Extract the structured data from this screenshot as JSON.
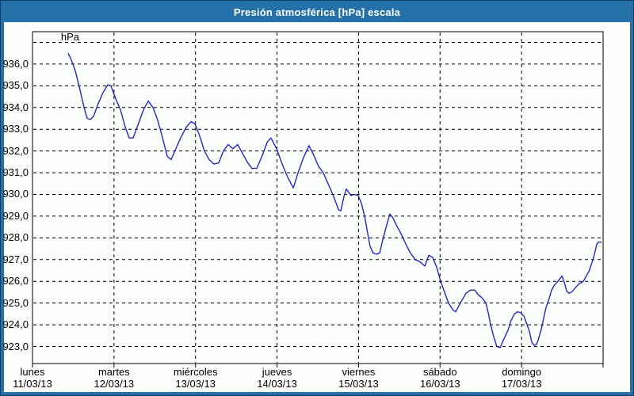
{
  "window": {
    "title": "Presión atmosférica [hPa] escala"
  },
  "colors": {
    "titlebar_bg": "#2470a8",
    "window_border": "#0d3a62",
    "content_bg": "#fcfffc",
    "line_color": "#2424c8",
    "grid_color": "#000000",
    "text_color": "#000000"
  },
  "chart_data": {
    "type": "line",
    "title": "Presión atmosférica [hPa] escala",
    "ylabel": "hPa",
    "unit_label": "hPa",
    "grid": "dashed",
    "legend": "none",
    "ylim": [
      922.3,
      937.5
    ],
    "y_gridlines": [
      923,
      924,
      925,
      926,
      927,
      928,
      929,
      930,
      931,
      932,
      933,
      934,
      935,
      936,
      937
    ],
    "y_tick_labels": [
      "936,0",
      "935,0",
      "934,0",
      "933,0",
      "932,0",
      "931,0",
      "930,0",
      "929,0",
      "928,0",
      "927,0",
      "926,0",
      "925,0",
      "924,0",
      "923,0"
    ],
    "x_ticks": [
      {
        "day": "lunes",
        "date": "11/03/13"
      },
      {
        "day": "martes",
        "date": "12/03/13"
      },
      {
        "day": "miércoles",
        "date": "13/03/13"
      },
      {
        "day": "jueves",
        "date": "14/03/13"
      },
      {
        "day": "viernes",
        "date": "15/03/13"
      },
      {
        "day": "sábado",
        "date": "16/03/13"
      },
      {
        "day": "domingo",
        "date": "17/03/13"
      }
    ],
    "x_axis_note": "x = hours since Monday 11/03/13 00:00, full span 0-168 h (7 days)",
    "series": [
      {
        "name": "Presión atmosférica",
        "points": [
          [
            10.5,
            936.5
          ],
          [
            11.4,
            936.2
          ],
          [
            12.6,
            935.7
          ],
          [
            14,
            934.8
          ],
          [
            15.2,
            934
          ],
          [
            16.1,
            933.5
          ],
          [
            17,
            933.45
          ],
          [
            18,
            933.6
          ],
          [
            19.4,
            934.2
          ],
          [
            20.8,
            934.7
          ],
          [
            22.2,
            935.05
          ],
          [
            23.1,
            935
          ],
          [
            24.5,
            934.4
          ],
          [
            25.9,
            933.9
          ],
          [
            27.3,
            933.1
          ],
          [
            28.5,
            932.6
          ],
          [
            29.6,
            932.6
          ],
          [
            31.3,
            933.3
          ],
          [
            32.7,
            933.9
          ],
          [
            34.1,
            934.3
          ],
          [
            35.5,
            934
          ],
          [
            36.9,
            933.4
          ],
          [
            38.3,
            932.6
          ],
          [
            39.7,
            931.75
          ],
          [
            40.8,
            931.6
          ],
          [
            42.2,
            932.1
          ],
          [
            43.6,
            932.6
          ],
          [
            45.3,
            933.1
          ],
          [
            46.7,
            933.35
          ],
          [
            47.8,
            933.25
          ],
          [
            49.2,
            932.7
          ],
          [
            50.6,
            932
          ],
          [
            52,
            931.6
          ],
          [
            53.4,
            931.4
          ],
          [
            54.8,
            931.45
          ],
          [
            56.2,
            932
          ],
          [
            57.6,
            932.3
          ],
          [
            59,
            932.1
          ],
          [
            60.4,
            932.3
          ],
          [
            61.8,
            931.9
          ],
          [
            63.2,
            931.5
          ],
          [
            64.6,
            931.2
          ],
          [
            66,
            931.2
          ],
          [
            67.7,
            931.8
          ],
          [
            69.1,
            932.4
          ],
          [
            70.2,
            932.6
          ],
          [
            71.9,
            932.1
          ],
          [
            73.5,
            931.4
          ],
          [
            75.1,
            930.8
          ],
          [
            76.8,
            930.3
          ],
          [
            78.2,
            931
          ],
          [
            79.8,
            931.7
          ],
          [
            81.4,
            932.25
          ],
          [
            82.8,
            931.8
          ],
          [
            84.2,
            931.3
          ],
          [
            85.6,
            931
          ],
          [
            87,
            930.5
          ],
          [
            88.7,
            929.9
          ],
          [
            90.1,
            929.3
          ],
          [
            90.8,
            929.25
          ],
          [
            91.7,
            929.9
          ],
          [
            92.4,
            930.25
          ],
          [
            93.1,
            930.1
          ],
          [
            93.8,
            929.95
          ],
          [
            94.7,
            930
          ],
          [
            95.9,
            929.95
          ],
          [
            96.8,
            929.6
          ],
          [
            97.8,
            929
          ],
          [
            98.7,
            928.2
          ],
          [
            99.4,
            927.6
          ],
          [
            100.3,
            927.3
          ],
          [
            101.3,
            927.25
          ],
          [
            102.2,
            927.3
          ],
          [
            103.1,
            927.9
          ],
          [
            104.3,
            928.6
          ],
          [
            105.2,
            929.1
          ],
          [
            106.2,
            928.9
          ],
          [
            107.1,
            928.6
          ],
          [
            108.5,
            928.2
          ],
          [
            110.1,
            927.65
          ],
          [
            111.3,
            927.3
          ],
          [
            112.7,
            927
          ],
          [
            114.1,
            926.9
          ],
          [
            115.5,
            926.7
          ],
          [
            116.7,
            927.2
          ],
          [
            117.8,
            927.1
          ],
          [
            119,
            926.65
          ],
          [
            120.2,
            926
          ],
          [
            121.3,
            925.5
          ],
          [
            122.5,
            925
          ],
          [
            123.7,
            924.7
          ],
          [
            124.6,
            924.6
          ],
          [
            126,
            925
          ],
          [
            127.6,
            925.45
          ],
          [
            129,
            925.6
          ],
          [
            130.2,
            925.6
          ],
          [
            131.4,
            925.35
          ],
          [
            132.3,
            925.25
          ],
          [
            133.5,
            925
          ],
          [
            134.2,
            924.55
          ],
          [
            134.9,
            924
          ],
          [
            135.8,
            923.45
          ],
          [
            136.7,
            923
          ],
          [
            137.7,
            922.95
          ],
          [
            138.8,
            923.35
          ],
          [
            140,
            923.75
          ],
          [
            140.9,
            924.2
          ],
          [
            141.9,
            924.5
          ],
          [
            142.8,
            924.6
          ],
          [
            143.7,
            924.55
          ],
          [
            144.7,
            924.4
          ],
          [
            145.4,
            924.1
          ],
          [
            146.3,
            923.7
          ],
          [
            147,
            923.2
          ],
          [
            147.7,
            923.05
          ],
          [
            148.4,
            923.1
          ],
          [
            148.9,
            923.3
          ],
          [
            149.8,
            923.8
          ],
          [
            150.5,
            924.3
          ],
          [
            151.2,
            924.8
          ],
          [
            152.1,
            925.2
          ],
          [
            152.8,
            925.6
          ],
          [
            153.8,
            925.85
          ],
          [
            154.7,
            926
          ],
          [
            155.9,
            926.25
          ],
          [
            156.6,
            925.95
          ],
          [
            157.3,
            925.55
          ],
          [
            158,
            925.45
          ],
          [
            158.7,
            925.5
          ],
          [
            159.8,
            925.7
          ],
          [
            161,
            925.9
          ],
          [
            162.2,
            926
          ],
          [
            162.9,
            926.2
          ],
          [
            163.8,
            926.45
          ],
          [
            164.5,
            926.75
          ],
          [
            165.2,
            927.1
          ],
          [
            165.7,
            927.4
          ],
          [
            166.1,
            927.7
          ],
          [
            166.6,
            927.8
          ],
          [
            167.5,
            927.8
          ]
        ]
      }
    ]
  }
}
